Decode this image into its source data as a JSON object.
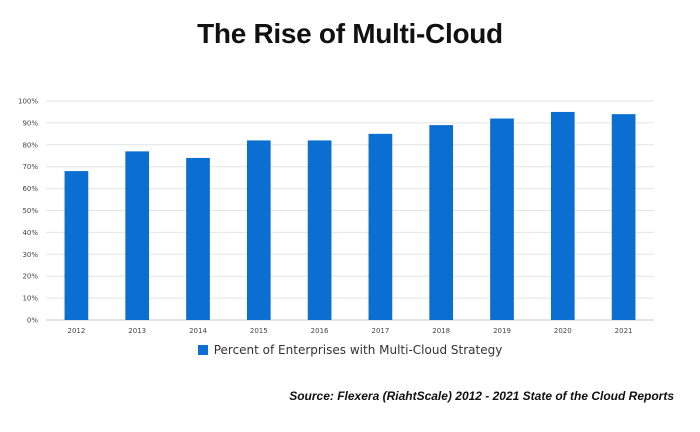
{
  "chart_data": {
    "type": "bar",
    "title": "The Rise of Multi-Cloud",
    "categories": [
      "2012",
      "2013",
      "2014",
      "2015",
      "2016",
      "2017",
      "2018",
      "2019",
      "2020",
      "2021"
    ],
    "series": [
      {
        "name": "Percent of Enterprises with Multi-Cloud Strategy",
        "values": [
          68,
          77,
          74,
          82,
          82,
          85,
          89,
          92,
          95,
          94
        ]
      }
    ],
    "ylim": [
      0,
      100
    ],
    "yticks": [
      "0%",
      "10%",
      "20%",
      "30%",
      "40%",
      "50%",
      "60%",
      "70%",
      "80%",
      "90%",
      "100%"
    ],
    "ytick_values": [
      0,
      10,
      20,
      30,
      40,
      50,
      60,
      70,
      80,
      90,
      100
    ],
    "grid": true,
    "legend_position": "bottom",
    "bar_color": "#0a6fd0"
  },
  "source": "Source: Flexera (RiahtScale) 2012 - 2021 State of the Cloud Reports"
}
